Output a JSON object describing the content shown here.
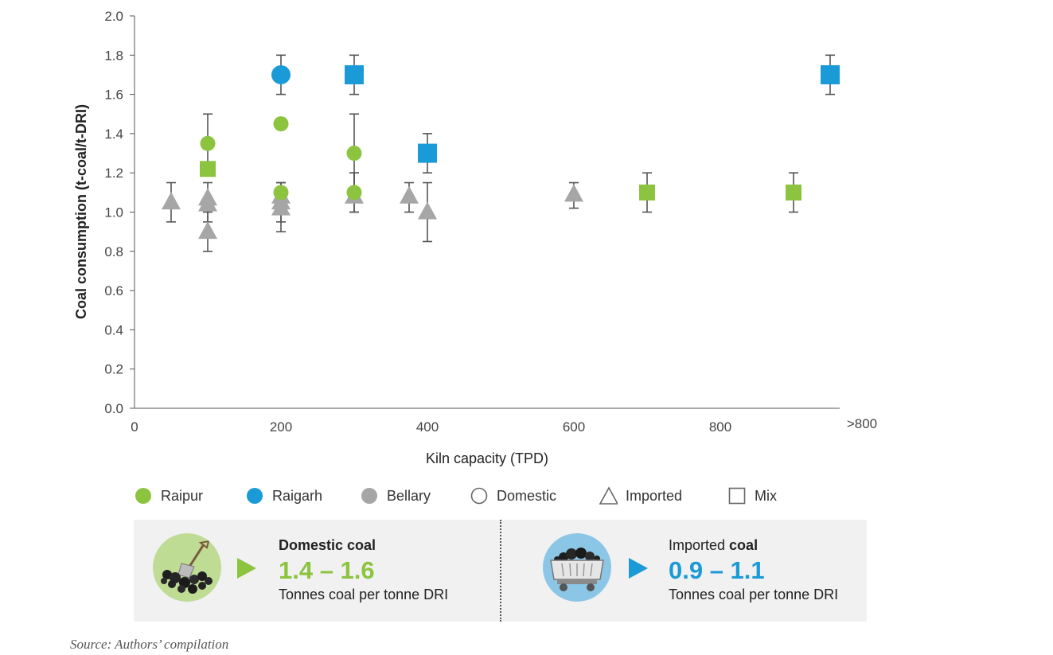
{
  "chart_data": {
    "type": "scatter",
    "xlabel": "Kiln capacity (TPD)",
    "ylabel": "Coal consumption (t-coal/t-DRI)",
    "xlim": [
      0,
      950
    ],
    "ylim": [
      0,
      2.0
    ],
    "x_ticks": [
      {
        "value": 0,
        "label": "0"
      },
      {
        "value": 200,
        "label": "200"
      },
      {
        "value": 400,
        "label": "400"
      },
      {
        "value": 600,
        "label": "600"
      },
      {
        "value": 800,
        "label": "800"
      },
      {
        "value": 940,
        "label": ">800"
      }
    ],
    "y_ticks": [
      {
        "value": 0.0,
        "label": "0.0"
      },
      {
        "value": 0.2,
        "label": "0.2"
      },
      {
        "value": 0.4,
        "label": "0.4"
      },
      {
        "value": 0.6,
        "label": "0.6"
      },
      {
        "value": 0.8,
        "label": "0.8"
      },
      {
        "value": 1.0,
        "label": "1.0"
      },
      {
        "value": 1.2,
        "label": "1.2"
      },
      {
        "value": 1.4,
        "label": "1.4"
      },
      {
        "value": 1.6,
        "label": "1.6"
      },
      {
        "value": 1.8,
        "label": "1.8"
      },
      {
        "value": 2.0,
        "label": "2.0"
      }
    ],
    "grid": false,
    "legend_position": "bottom",
    "region_colors": {
      "Raipur": "#8cc43f",
      "Raigarh": "#1a9ad6",
      "Bellary": "#a6a6a6"
    },
    "points": [
      {
        "region": "Bellary",
        "coal": "Imported",
        "x": 50,
        "y": 1.05,
        "err_low": 0.95,
        "err_high": 1.15
      },
      {
        "region": "Bellary",
        "coal": "Imported",
        "x": 100,
        "y": 1.07,
        "err_low": 0.95,
        "err_high": 1.15
      },
      {
        "region": "Bellary",
        "coal": "Imported",
        "x": 100,
        "y": 1.04
      },
      {
        "region": "Bellary",
        "coal": "Imported",
        "x": 100,
        "y": 0.9,
        "err_low": 0.8,
        "err_high": 1.0
      },
      {
        "region": "Bellary",
        "coal": "Imported",
        "x": 200,
        "y": 1.08,
        "err_low": 0.95,
        "err_high": 1.15
      },
      {
        "region": "Bellary",
        "coal": "Imported",
        "x": 200,
        "y": 1.05
      },
      {
        "region": "Bellary",
        "coal": "Imported",
        "x": 200,
        "y": 1.02,
        "err_low": 0.9,
        "err_high": 1.1
      },
      {
        "region": "Bellary",
        "coal": "Imported",
        "x": 300,
        "y": 1.08,
        "err_low": 1.0,
        "err_high": 1.2
      },
      {
        "region": "Bellary",
        "coal": "Imported",
        "x": 375,
        "y": 1.08,
        "err_low": 1.0,
        "err_high": 1.15
      },
      {
        "region": "Bellary",
        "coal": "Imported",
        "x": 400,
        "y": 1.0,
        "err_low": 0.85,
        "err_high": 1.15
      },
      {
        "region": "Bellary",
        "coal": "Imported",
        "x": 600,
        "y": 1.09,
        "err_low": 1.02,
        "err_high": 1.15
      },
      {
        "region": "Raipur",
        "coal": "Domestic",
        "x": 100,
        "y": 1.35,
        "err_low": 1.2,
        "err_high": 1.5
      },
      {
        "region": "Raipur",
        "coal": "Mix",
        "x": 100,
        "y": 1.22
      },
      {
        "region": "Raipur",
        "coal": "Domestic",
        "x": 200,
        "y": 1.45
      },
      {
        "region": "Raipur",
        "coal": "Domestic",
        "x": 200,
        "y": 1.1,
        "err_low": 1.0,
        "err_high": 1.15
      },
      {
        "region": "Raipur",
        "coal": "Domestic",
        "x": 300,
        "y": 1.3,
        "err_low": 1.1,
        "err_high": 1.5
      },
      {
        "region": "Raipur",
        "coal": "Domestic",
        "x": 300,
        "y": 1.1,
        "err_low": 1.0,
        "err_high": 1.2
      },
      {
        "region": "Raipur",
        "coal": "Mix",
        "x": 700,
        "y": 1.1,
        "err_low": 1.0,
        "err_high": 1.2
      },
      {
        "region": "Raipur",
        "coal": "Mix",
        "x": 900,
        "y": 1.1,
        "err_low": 1.0,
        "err_high": 1.2
      },
      {
        "region": "Raigarh",
        "coal": "Domestic",
        "x": 200,
        "y": 1.7,
        "err_low": 1.6,
        "err_high": 1.8
      },
      {
        "region": "Raigarh",
        "coal": "Mix",
        "x": 300,
        "y": 1.7,
        "err_low": 1.6,
        "err_high": 1.8
      },
      {
        "region": "Raigarh",
        "coal": "Mix",
        "x": 400,
        "y": 1.3,
        "err_low": 1.2,
        "err_high": 1.4
      },
      {
        "region": "Raigarh",
        "coal": "Mix",
        "x": 950,
        "y": 1.7,
        "err_low": 1.6,
        "err_high": 1.8
      }
    ]
  },
  "legend": {
    "raipur": "Raipur",
    "raigarh": "Raigarh",
    "bellary": "Bellary",
    "domestic": "Domestic",
    "imported": "Imported",
    "mix": "Mix"
  },
  "colors": {
    "green": "#8cc43f",
    "blue": "#1a9ad6",
    "grey": "#a6a6a6",
    "panel_bg": "#f1f1f1"
  },
  "panel": {
    "domestic": {
      "title": "Domestic coal",
      "value": "1.4 – 1.6",
      "subtitle": "Tonnes coal per tonne DRI",
      "icon": "coal-pile-shovel-icon"
    },
    "imported": {
      "title_plain": "Imported ",
      "title_bold": "coal",
      "value": "0.9 – 1.1",
      "subtitle": "Tonnes coal per tonne DRI",
      "icon": "coal-wagon-icon"
    }
  },
  "source": "Source: Authors’ compilation"
}
